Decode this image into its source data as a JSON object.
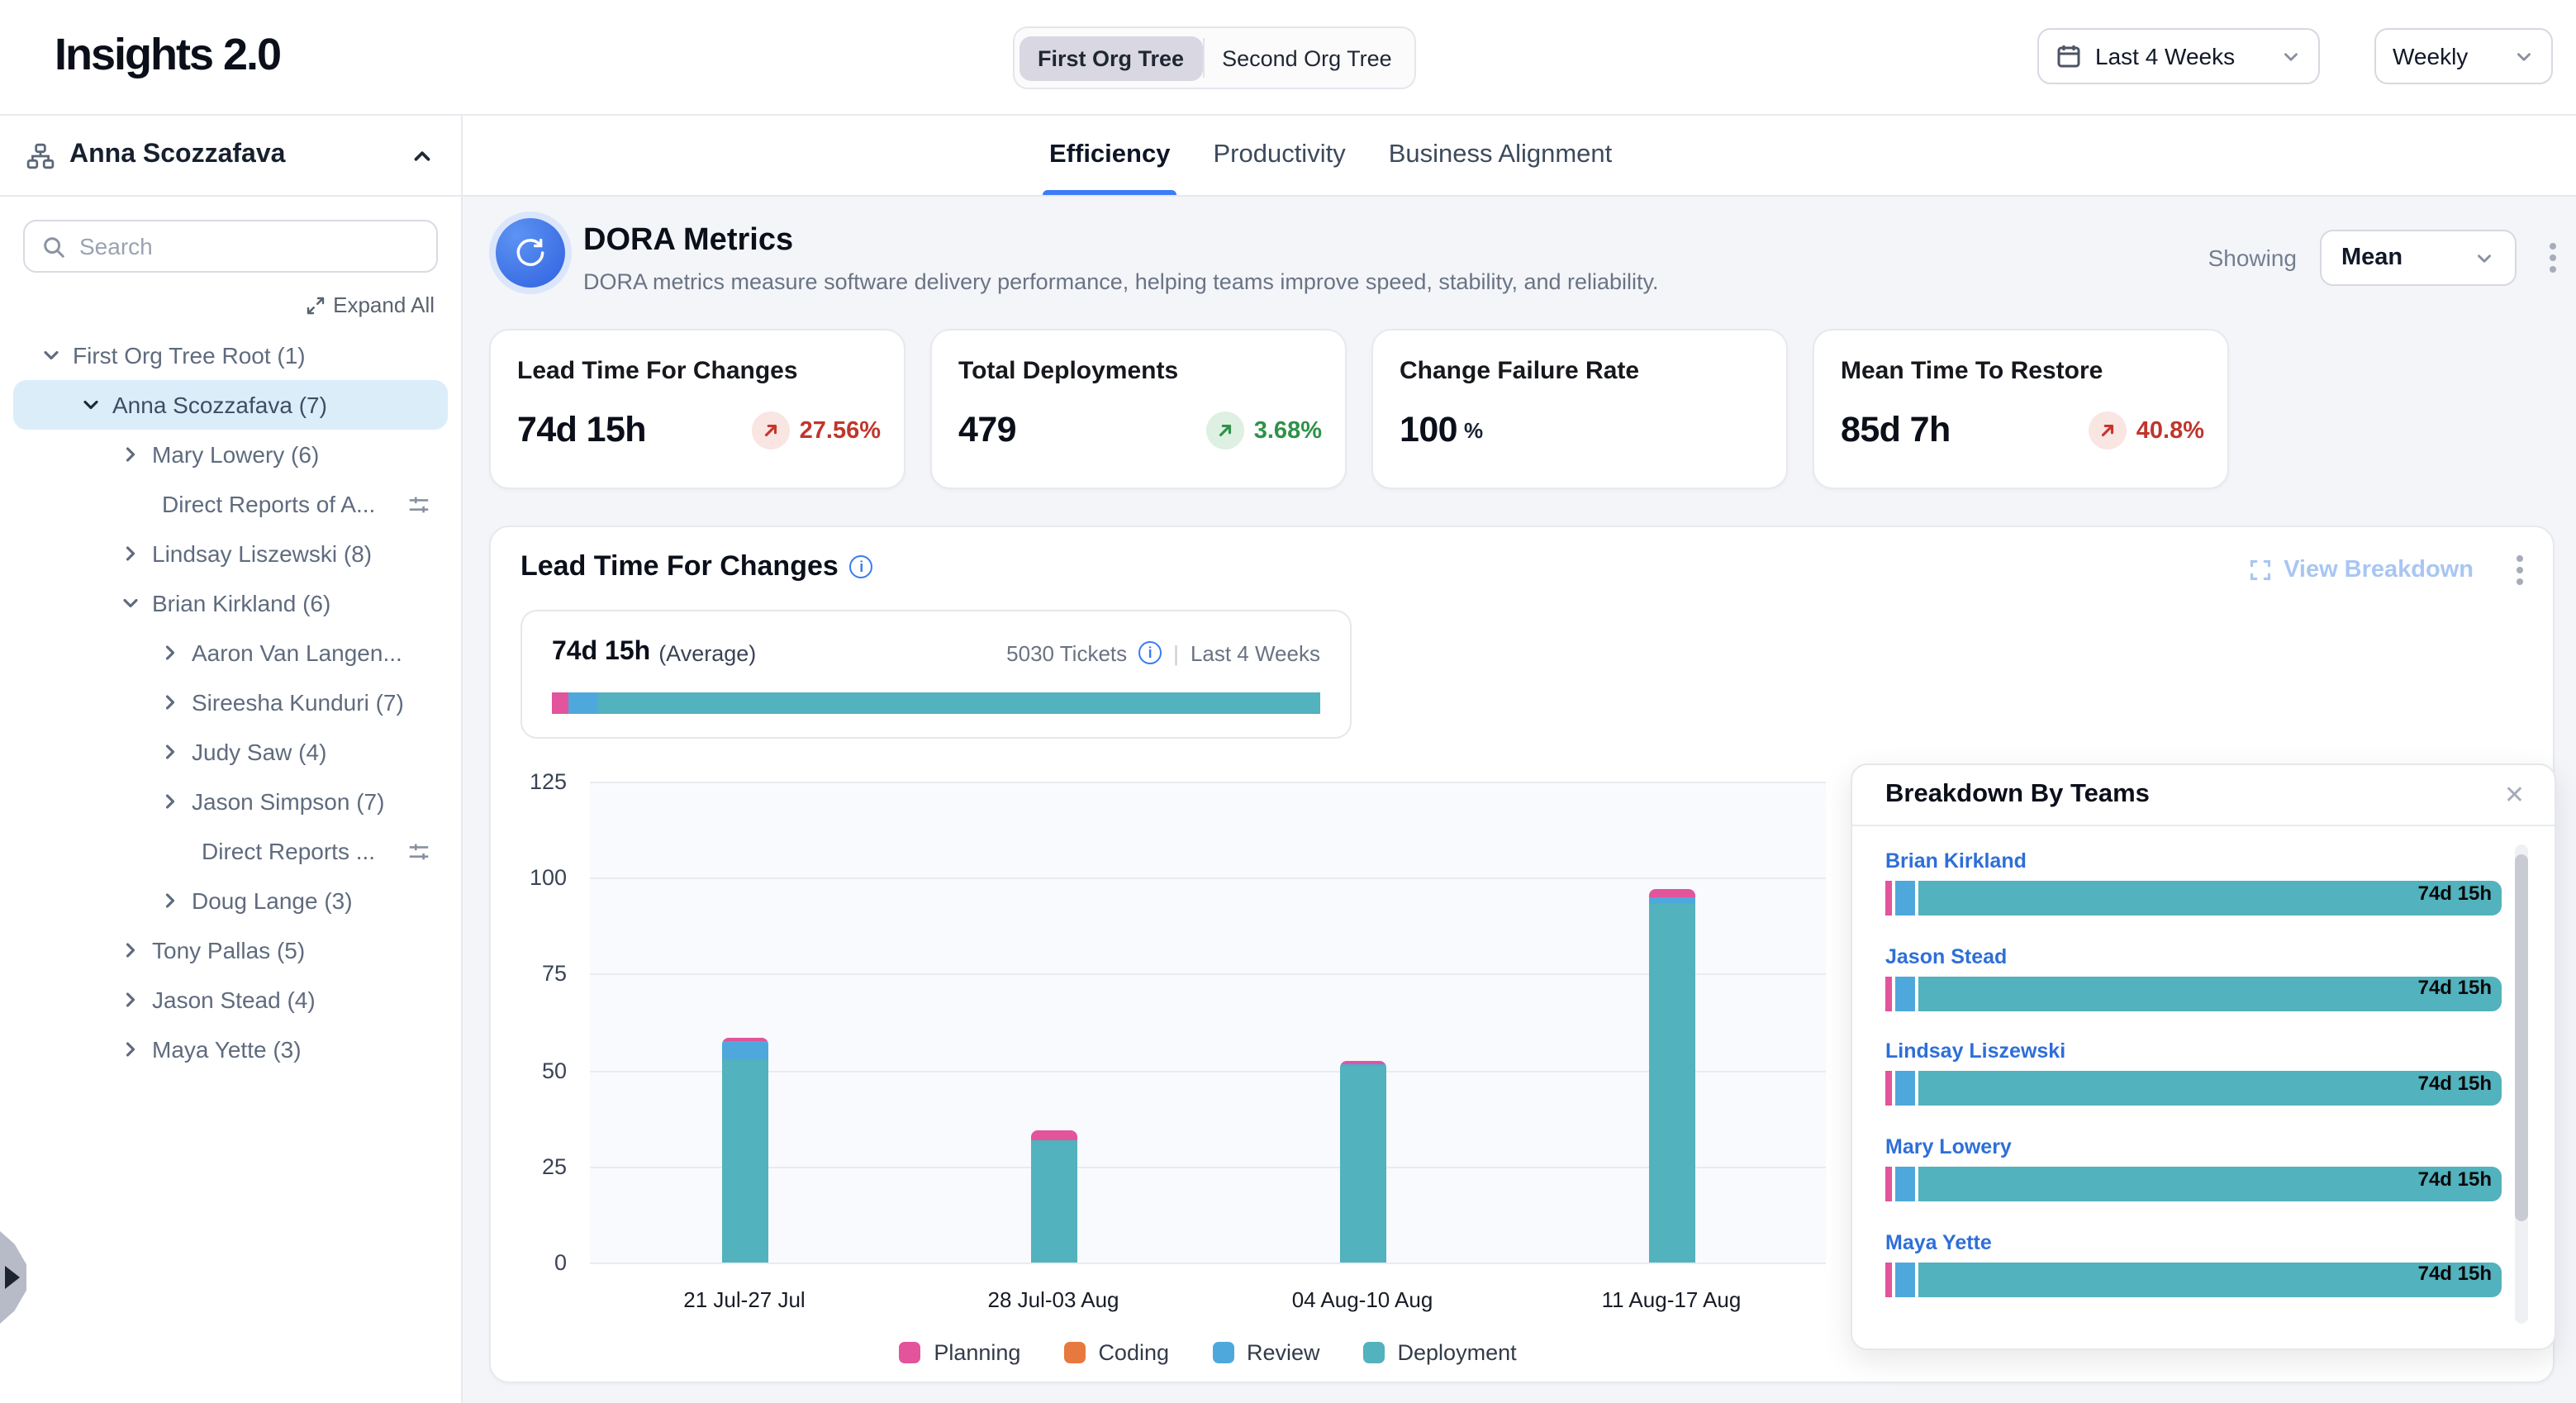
{
  "header": {
    "app_title": "Insights 2.0",
    "org_tree_options": [
      "First Org Tree",
      "Second Org Tree"
    ],
    "selected_org_tree": "First Org Tree",
    "date_range": "Last 4 Weeks",
    "granularity": "Weekly"
  },
  "sidebar": {
    "user": "Anna Scozzafava",
    "search_placeholder": "Search",
    "expand_all": "Expand All",
    "tree": [
      {
        "label": "First Org Tree Root (1)",
        "level": 0,
        "chevron": "down",
        "selected": false,
        "filter_icon": false
      },
      {
        "label": "Anna Scozzafava (7)",
        "level": 1,
        "chevron": "down",
        "selected": true,
        "filter_icon": false
      },
      {
        "label": "Mary Lowery (6)",
        "level": 2,
        "chevron": "right",
        "selected": false,
        "filter_icon": false
      },
      {
        "label": "Direct Reports of A...",
        "level": 2,
        "chevron": "none",
        "selected": false,
        "filter_icon": true
      },
      {
        "label": "Lindsay Liszewski (8)",
        "level": 2,
        "chevron": "right",
        "selected": false,
        "filter_icon": false
      },
      {
        "label": "Brian Kirkland (6)",
        "level": 2,
        "chevron": "down",
        "selected": false,
        "filter_icon": false
      },
      {
        "label": "Aaron Van Langen...",
        "level": 3,
        "chevron": "right",
        "selected": false,
        "filter_icon": false
      },
      {
        "label": "Sireesha Kunduri (7)",
        "level": 3,
        "chevron": "right",
        "selected": false,
        "filter_icon": false
      },
      {
        "label": "Judy Saw (4)",
        "level": 3,
        "chevron": "right",
        "selected": false,
        "filter_icon": false
      },
      {
        "label": "Jason Simpson (7)",
        "level": 3,
        "chevron": "right",
        "selected": false,
        "filter_icon": false
      },
      {
        "label": "Direct Reports ...",
        "level": 3,
        "chevron": "none",
        "selected": false,
        "filter_icon": true
      },
      {
        "label": "Doug Lange (3)",
        "level": 3,
        "chevron": "right",
        "selected": false,
        "filter_icon": false
      },
      {
        "label": "Tony Pallas (5)",
        "level": 2,
        "chevron": "right",
        "selected": false,
        "filter_icon": false
      },
      {
        "label": "Jason Stead (4)",
        "level": 2,
        "chevron": "right",
        "selected": false,
        "filter_icon": false
      },
      {
        "label": "Maya Yette (3)",
        "level": 2,
        "chevron": "right",
        "selected": false,
        "filter_icon": false
      }
    ]
  },
  "tabs": [
    {
      "label": "Efficiency",
      "active": true
    },
    {
      "label": "Productivity",
      "active": false
    },
    {
      "label": "Business Alignment",
      "active": false
    }
  ],
  "dora": {
    "title": "DORA Metrics",
    "description": "DORA metrics measure software delivery performance, helping teams improve speed, stability, and reliability.",
    "showing_label": "Showing",
    "showing_value": "Mean",
    "cards": [
      {
        "title": "Lead Time For Changes",
        "value": "74d 15h",
        "unit": "",
        "delta": "27.56%",
        "sentiment": "bad"
      },
      {
        "title": "Total Deployments",
        "value": "479",
        "unit": "",
        "delta": "3.68%",
        "sentiment": "good"
      },
      {
        "title": "Change Failure Rate",
        "value": "100",
        "unit": "%",
        "delta": "",
        "sentiment": ""
      },
      {
        "title": "Mean Time To Restore",
        "value": "85d 7h",
        "unit": "",
        "delta": "40.8%",
        "sentiment": "bad"
      }
    ]
  },
  "lead_time": {
    "title": "Lead Time For Changes",
    "view_breakdown": "View Breakdown",
    "average_value": "74d 15h",
    "average_label": "(Average)",
    "tickets": "5030 Tickets",
    "period": "Last 4 Weeks",
    "average_bar": [
      {
        "series": "Planning",
        "color": "#E2549B",
        "pct": 2.2
      },
      {
        "series": "Review",
        "color": "#4FA8DC",
        "pct": 3.8
      },
      {
        "series": "Deployment",
        "color": "#52B2BD",
        "pct": 94
      }
    ]
  },
  "chart_data": {
    "type": "bar",
    "stacked": true,
    "title": "Lead Time For Changes",
    "categories": [
      "21 Jul-27 Jul",
      "28 Jul-03 Aug",
      "04 Aug-10 Aug",
      "11 Aug-17 Aug"
    ],
    "series": [
      {
        "name": "Planning",
        "color": "#E2549B",
        "values": [
          1,
          2.5,
          1,
          2
        ]
      },
      {
        "name": "Coding",
        "color": "#E8793E",
        "values": [
          0,
          0,
          0,
          0
        ]
      },
      {
        "name": "Review",
        "color": "#4FA8DC",
        "values": [
          4.5,
          0,
          0.5,
          2
        ]
      },
      {
        "name": "Deployment",
        "color": "#52B2BD",
        "values": [
          53,
          32,
          51,
          93
        ]
      }
    ],
    "xlabel": "",
    "ylabel": "",
    "ylim": [
      0,
      125
    ],
    "yticks": [
      0,
      25,
      50,
      75,
      100,
      125
    ],
    "grid": true,
    "legend_position": "bottom"
  },
  "breakdown_panel": {
    "title": "Breakdown By Teams",
    "bar_segments": [
      {
        "series": "Planning",
        "color": "#E2549B",
        "px": 4
      },
      {
        "series": "Review",
        "color": "#4FA8DC",
        "px": 12
      },
      {
        "series": "Deployment",
        "color": "#52B2BD",
        "px": "fill"
      }
    ],
    "teams": [
      {
        "name": "Brian Kirkland",
        "value": "74d 15h"
      },
      {
        "name": "Jason Stead",
        "value": "74d 15h"
      },
      {
        "name": "Lindsay Liszewski",
        "value": "74d 15h"
      },
      {
        "name": "Mary Lowery",
        "value": "74d 15h"
      },
      {
        "name": "Maya Yette",
        "value": "74d 15h"
      }
    ]
  },
  "colors": {
    "accent_blue": "#3D7BF7",
    "link_blue": "#2E6FD8",
    "planning_pink": "#E2549B",
    "coding_orange": "#E8793E",
    "review_blue": "#4FA8DC",
    "deployment_teal": "#52B2BD",
    "negative_red": "#C0362C",
    "positive_green": "#2E9249",
    "content_bg": "#F3F5F9"
  }
}
